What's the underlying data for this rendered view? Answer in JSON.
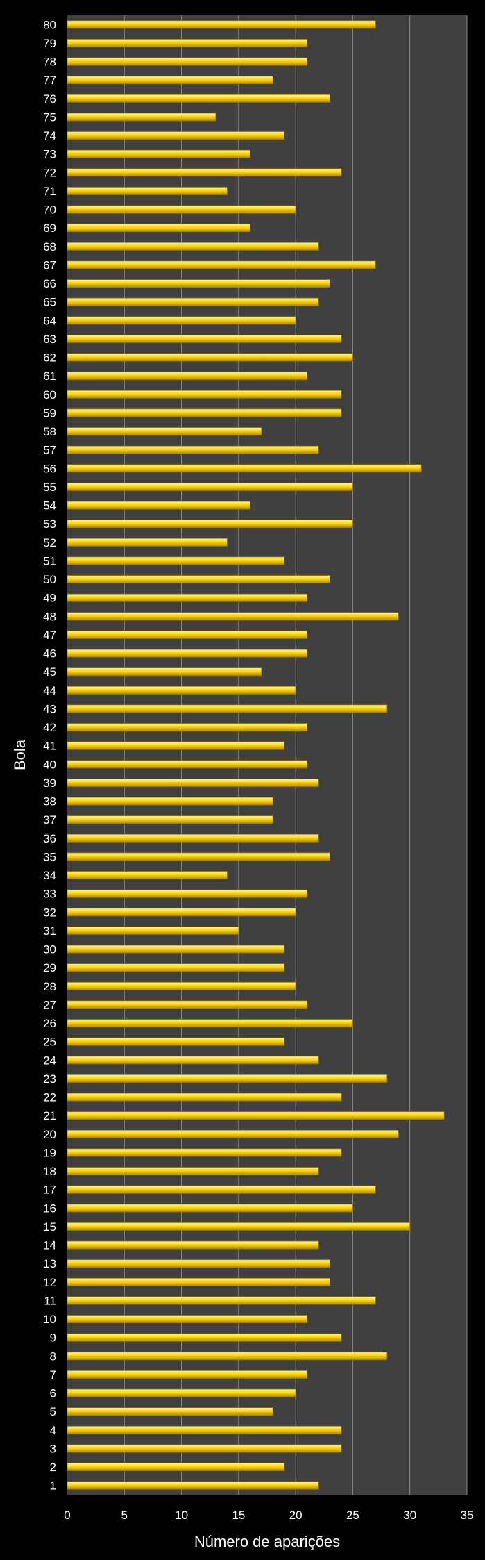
{
  "chart_data": {
    "type": "bar",
    "orientation": "horizontal",
    "title": "",
    "xlabel": "Número de aparições",
    "ylabel": "Bola",
    "xlim": [
      0,
      35
    ],
    "xticks": [
      0,
      5,
      10,
      15,
      20,
      25,
      30,
      35
    ],
    "grid": true,
    "legend": "none",
    "categories": [
      "1",
      "2",
      "3",
      "4",
      "5",
      "6",
      "7",
      "8",
      "9",
      "10",
      "11",
      "12",
      "13",
      "14",
      "15",
      "16",
      "17",
      "18",
      "19",
      "20",
      "21",
      "22",
      "23",
      "24",
      "25",
      "26",
      "27",
      "28",
      "29",
      "30",
      "31",
      "32",
      "33",
      "34",
      "35",
      "36",
      "37",
      "38",
      "39",
      "40",
      "41",
      "42",
      "43",
      "44",
      "45",
      "46",
      "47",
      "48",
      "49",
      "50",
      "51",
      "52",
      "53",
      "54",
      "55",
      "56",
      "57",
      "58",
      "59",
      "60",
      "61",
      "62",
      "63",
      "64",
      "65",
      "66",
      "67",
      "68",
      "69",
      "70",
      "71",
      "72",
      "73",
      "74",
      "75",
      "76",
      "77",
      "78",
      "79",
      "80"
    ],
    "values": [
      22,
      19,
      24,
      24,
      18,
      20,
      21,
      28,
      24,
      21,
      27,
      23,
      23,
      22,
      30,
      25,
      27,
      22,
      24,
      29,
      33,
      24,
      28,
      22,
      19,
      25,
      21,
      20,
      19,
      19,
      15,
      20,
      21,
      14,
      23,
      22,
      18,
      18,
      22,
      21,
      19,
      21,
      28,
      20,
      17,
      21,
      21,
      29,
      21,
      23,
      19,
      14,
      25,
      16,
      25,
      31,
      22,
      17,
      24,
      24,
      21,
      25,
      24,
      20,
      22,
      23,
      27,
      22,
      16,
      20,
      14,
      24,
      16,
      19,
      13,
      23,
      18,
      21,
      21,
      27
    ],
    "colors": {
      "background": "#000000",
      "plot_area": "#404040",
      "gridline": "#8c8c8c",
      "bar_fill": "#ffd700",
      "bar_highlight": "#fff27a",
      "bar_shadow": "#a37d00",
      "text": "#ffffff"
    }
  }
}
